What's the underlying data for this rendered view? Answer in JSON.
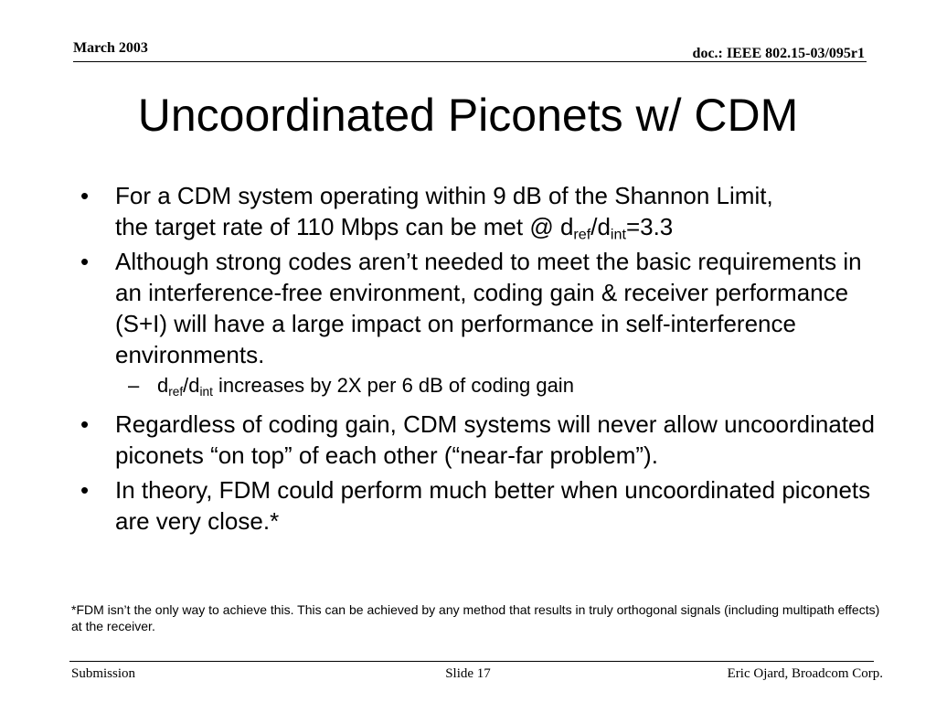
{
  "header": {
    "date": "March 2003",
    "doc_id": "doc.: IEEE 802.15-03/095r1"
  },
  "title": "Uncoordinated Piconets w/ CDM",
  "bullets": {
    "b1": {
      "mark": "•",
      "line1": "For a CDM system operating within 9 dB of the Shannon Limit,",
      "line2": "the target rate of 110 Mbps can be met @ d",
      "sub1": "ref",
      "slash": "/d",
      "sub2": "int",
      "tail": "=3.3"
    },
    "b2": {
      "mark": "•",
      "text": "Although strong codes aren’t needed to meet the basic requirements in an interference-free environment, coding gain & receiver performance (S+I) will have a large impact on performance in self-interference environments.",
      "subitem": {
        "mark": "–",
        "lead": "d",
        "sub1": "ref",
        "slash": "/d",
        "sub2": "int",
        "tail": " increases by 2X per 6 dB of coding gain"
      }
    },
    "b3": {
      "mark": "•",
      "text": "Regardless of coding gain, CDM systems will never allow uncoordinated piconets “on top” of each other (“near-far problem”)."
    },
    "b4": {
      "mark": "•",
      "text": "In theory, FDM could perform much better when uncoordinated piconets are very close.*"
    }
  },
  "footnote": "*FDM isn’t the only way to achieve this.  This can be achieved by any method that results in truly orthogonal signals (including multipath effects) at the receiver.",
  "footer": {
    "left": "Submission",
    "center": "Slide 17",
    "right": "Eric Ojard, Broadcom Corp."
  }
}
